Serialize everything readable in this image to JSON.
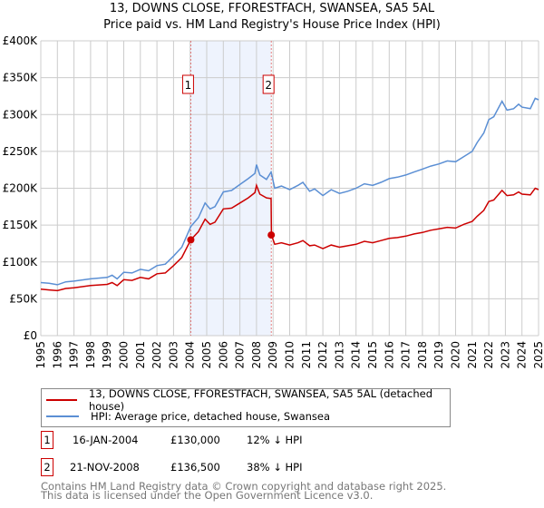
{
  "chart_data": {
    "type": "line",
    "title": "13, DOWNS CLOSE, FFORESTFACH, SWANSEA, SA5 5AL",
    "subtitle": "Price paid vs. HM Land Registry's House Price Index (HPI)",
    "xlabel": "",
    "ylabel": "",
    "xlim": [
      1995,
      2025
    ],
    "ylim": [
      0,
      400000
    ],
    "grid": true,
    "legend_placement": "bottom",
    "x_ticks": [
      "1995",
      "1996",
      "1997",
      "1998",
      "1999",
      "2000",
      "2001",
      "2002",
      "2003",
      "2004",
      "2005",
      "2006",
      "2007",
      "2008",
      "2009",
      "2010",
      "2011",
      "2012",
      "2013",
      "2014",
      "2015",
      "2016",
      "2017",
      "2018",
      "2019",
      "2020",
      "2021",
      "2022",
      "2023",
      "2024",
      "2025"
    ],
    "y_ticks": [
      {
        "v": 0,
        "label": "£0"
      },
      {
        "v": 50000,
        "label": "£50K"
      },
      {
        "v": 100000,
        "label": "£100K"
      },
      {
        "v": 150000,
        "label": "£150K"
      },
      {
        "v": 200000,
        "label": "£200K"
      },
      {
        "v": 250000,
        "label": "£250K"
      },
      {
        "v": 300000,
        "label": "£300K"
      },
      {
        "v": 350000,
        "label": "£350K"
      },
      {
        "v": 400000,
        "label": "£400K"
      }
    ],
    "x": [
      1995,
      1995.5,
      1996,
      1996.5,
      1997,
      1998,
      1999,
      1999.3,
      1999.6,
      2000,
      2000.5,
      2001,
      2001.5,
      2002,
      2002.5,
      2003,
      2003.5,
      2004.04,
      2004.5,
      2004.9,
      2005.2,
      2005.5,
      2006,
      2006.5,
      2007,
      2007.5,
      2007.9,
      2008.0,
      2008.2,
      2008.6,
      2008.88,
      2008.9,
      2009.1,
      2009.5,
      2010,
      2010.5,
      2010.8,
      2011.2,
      2011.5,
      2012,
      2012.5,
      2013,
      2013.5,
      2014,
      2014.5,
      2015,
      2015.5,
      2016,
      2016.5,
      2017,
      2017.5,
      2018,
      2018.5,
      2019,
      2019.5,
      2020,
      2020.5,
      2021,
      2021.3,
      2021.7,
      2022,
      2022.3,
      2022.8,
      2023.1,
      2023.5,
      2023.8,
      2024,
      2024.5,
      2024.8,
      2025
    ],
    "series": [
      {
        "name": "13, DOWNS CLOSE, FFORESTFACH, SWANSEA, SA5 5AL (detached house)",
        "color": "#cc0000",
        "values": [
          63000,
          62000,
          61000,
          64000,
          65000,
          68000,
          69500,
          72000,
          68000,
          76000,
          75000,
          79000,
          77000,
          84000,
          85000,
          95000,
          106000,
          130000,
          141000,
          158000,
          151000,
          154000,
          172000,
          173000,
          180000,
          187000,
          194000,
          204000,
          192000,
          187000,
          186000,
          136500,
          124000,
          126000,
          123000,
          126000,
          129000,
          122000,
          123000,
          118000,
          123000,
          120000,
          122000,
          124000,
          128000,
          126000,
          129000,
          132000,
          133000,
          135000,
          138000,
          140000,
          143000,
          145000,
          147000,
          146000,
          151000,
          155000,
          162000,
          170000,
          182000,
          184000,
          197000,
          190000,
          191000,
          195000,
          192000,
          191000,
          200000,
          198000
        ]
      },
      {
        "name": "HPI: Average price, detached house, Swansea",
        "color": "#5b8fd4",
        "values": [
          72000,
          71000,
          69000,
          73000,
          74000,
          77000,
          79000,
          82000,
          77000,
          86000,
          85000,
          90000,
          88000,
          95000,
          97000,
          108000,
          120000,
          148000,
          160000,
          180000,
          172000,
          175000,
          195000,
          197000,
          205000,
          213000,
          220000,
          232000,
          218000,
          212000,
          222000,
          220000,
          200000,
          203000,
          198000,
          204000,
          208000,
          196000,
          199000,
          190000,
          198000,
          193000,
          196000,
          200000,
          206000,
          204000,
          208000,
          213000,
          215000,
          218000,
          222000,
          226000,
          230000,
          233000,
          237000,
          236000,
          243000,
          250000,
          262000,
          275000,
          293000,
          297000,
          318000,
          306000,
          308000,
          314000,
          310000,
          308000,
          322000,
          320000
        ]
      }
    ],
    "sales": [
      {
        "label": "1",
        "x": 2004.04,
        "price": 130000,
        "date": "16-JAN-2004",
        "price_text": "£130,000",
        "hpi_text": "12% ↓ HPI"
      },
      {
        "label": "2",
        "x": 2008.89,
        "price": 136500,
        "date": "21-NOV-2008",
        "price_text": "£136,500",
        "hpi_text": "38% ↓ HPI"
      }
    ]
  },
  "footer": {
    "line1": "Contains HM Land Registry data © Crown copyright and database right 2025.",
    "line2": "This data is licensed under the Open Government Licence v3.0."
  }
}
